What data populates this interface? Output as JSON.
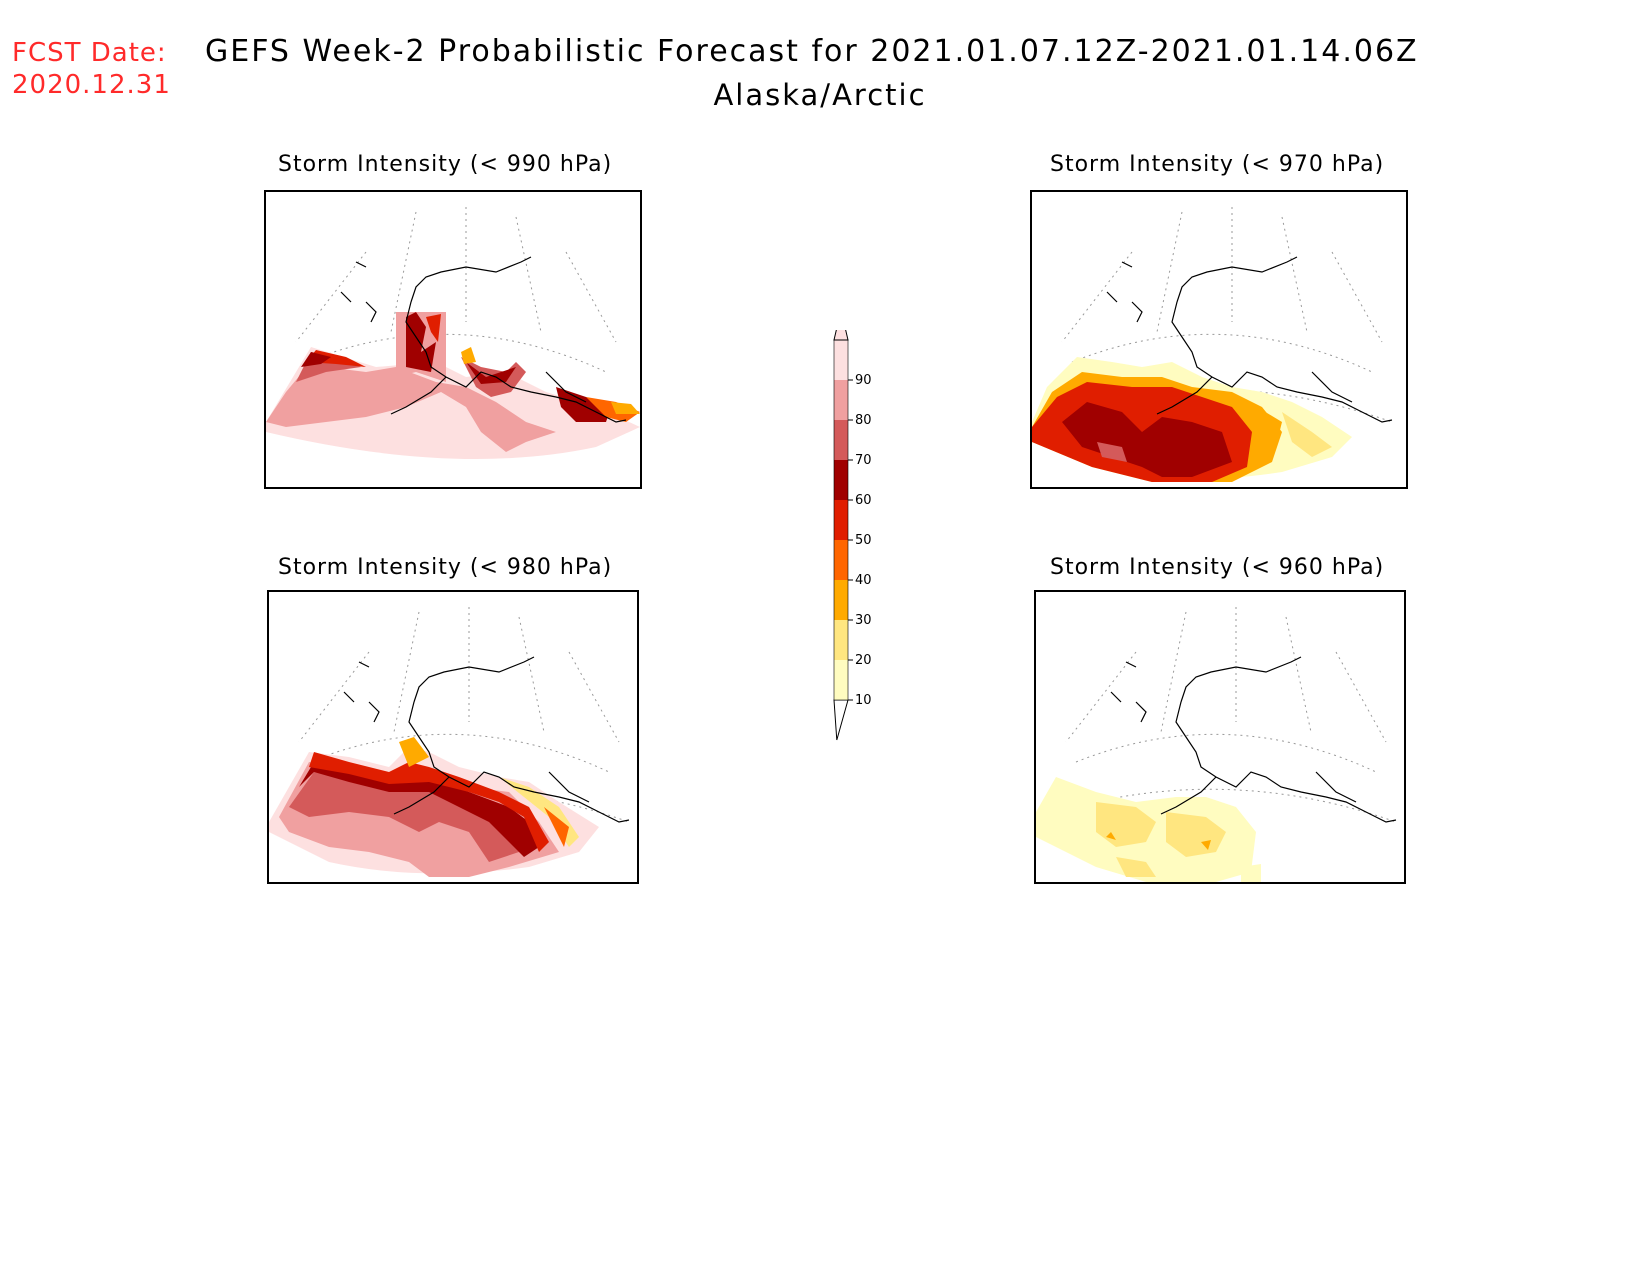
{
  "header": {
    "fcst_label": "FCST Date:",
    "fcst_date": "2020.12.31",
    "title": "GEFS Week-2 Probabilistic Forecast for 2021.01.07.12Z-2021.01.14.06Z",
    "subtitle": "Alaska/Arctic"
  },
  "panels": [
    {
      "id": "p990",
      "title": "Storm Intensity (< 990 hPa)"
    },
    {
      "id": "p970",
      "title": "Storm Intensity (< 970 hPa)"
    },
    {
      "id": "p980",
      "title": "Storm Intensity (< 980 hPa)"
    },
    {
      "id": "p960",
      "title": "Storm Intensity (< 960 hPa)"
    }
  ],
  "legend": {
    "levels": [
      "10",
      "20",
      "30",
      "40",
      "50",
      "60",
      "70",
      "80",
      "90"
    ],
    "colors": [
      "#fffcc0",
      "#ffe680",
      "#ffaa00",
      "#ff6600",
      "#e01e00",
      "#a00000",
      "#d45a5a",
      "#f0a0a0",
      "#fde0e0"
    ]
  }
}
